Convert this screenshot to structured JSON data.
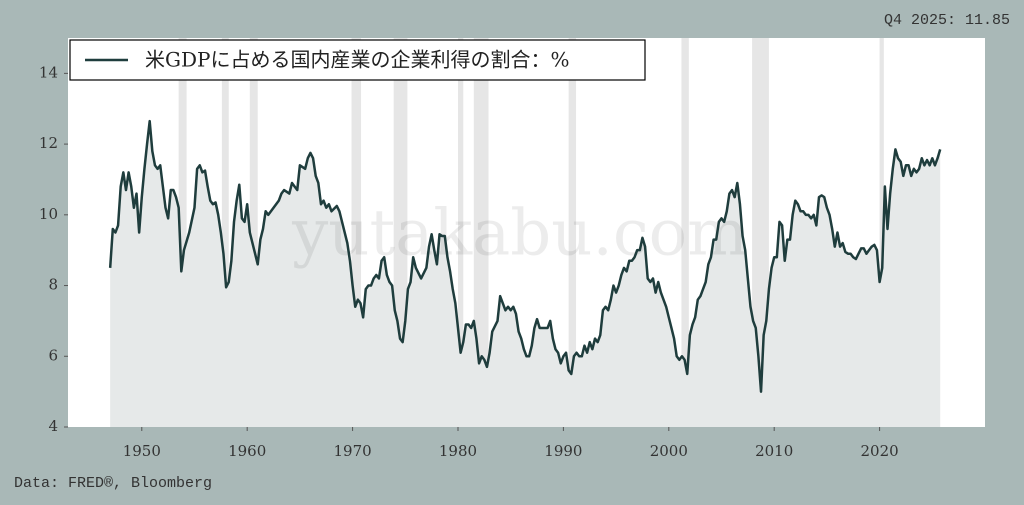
{
  "chart_data": {
    "type": "line",
    "annotation": "Q4 2025: 11.85",
    "source": "Data: FRED®, Bloomberg",
    "watermark": "yutakabu.com",
    "xlim": [
      1943,
      2030
    ],
    "ylim": [
      4,
      15
    ],
    "xticks": [
      1950,
      1960,
      1970,
      1980,
      1990,
      2000,
      2010,
      2020
    ],
    "yticks": [
      4,
      6,
      8,
      10,
      12,
      14
    ],
    "legend": "top-left",
    "recession_color": "#e6e6e6",
    "recessions": [
      [
        1953.5,
        1954.25
      ],
      [
        1957.6,
        1958.25
      ],
      [
        1960.25,
        1961.0
      ],
      [
        1969.9,
        1970.8
      ],
      [
        1973.9,
        1975.2
      ],
      [
        1980.0,
        1980.5
      ],
      [
        1981.5,
        1982.9
      ],
      [
        1990.5,
        1991.2
      ],
      [
        2001.2,
        2001.9
      ],
      [
        2007.9,
        2009.5
      ],
      [
        2020.0,
        2020.4
      ]
    ],
    "series": [
      {
        "name": "米GDPに占める国内産業の企業利得の割合：%",
        "color": "#1f3d3d",
        "fill": "#e6e9e9",
        "x": [
          1947.0,
          1947.25,
          1947.5,
          1947.75,
          1948.0,
          1948.25,
          1948.5,
          1948.75,
          1949.0,
          1949.25,
          1949.5,
          1949.75,
          1950.0,
          1950.25,
          1950.5,
          1950.75,
          1951.0,
          1951.25,
          1951.5,
          1951.75,
          1952.0,
          1952.25,
          1952.5,
          1952.75,
          1953.0,
          1953.25,
          1953.5,
          1953.75,
          1954.0,
          1954.5,
          1955.0,
          1955.25,
          1955.5,
          1955.75,
          1956.0,
          1956.25,
          1956.5,
          1956.75,
          1957.0,
          1957.25,
          1957.5,
          1957.75,
          1958.0,
          1958.25,
          1958.5,
          1958.75,
          1959.0,
          1959.25,
          1959.5,
          1959.75,
          1960.0,
          1960.25,
          1960.5,
          1960.75,
          1961.0,
          1961.25,
          1961.5,
          1961.75,
          1962.0,
          1962.5,
          1963.0,
          1963.25,
          1963.5,
          1964.0,
          1964.25,
          1964.75,
          1965.0,
          1965.5,
          1965.75,
          1966.0,
          1966.25,
          1966.5,
          1966.75,
          1967.0,
          1967.25,
          1967.5,
          1967.75,
          1968.0,
          1968.5,
          1968.75,
          1969.0,
          1969.5,
          1969.75,
          1970.0,
          1970.25,
          1970.5,
          1970.75,
          1971.0,
          1971.25,
          1971.5,
          1971.75,
          1972.0,
          1972.25,
          1972.5,
          1972.75,
          1973.0,
          1973.25,
          1973.5,
          1973.75,
          1974.0,
          1974.25,
          1974.5,
          1974.75,
          1975.0,
          1975.25,
          1975.5,
          1975.75,
          1976.0,
          1976.5,
          1977.0,
          1977.25,
          1977.5,
          1977.75,
          1978.0,
          1978.25,
          1978.5,
          1978.75,
          1979.0,
          1979.25,
          1979.5,
          1979.75,
          1980.0,
          1980.25,
          1980.5,
          1980.75,
          1981.0,
          1981.25,
          1981.5,
          1981.75,
          1982.0,
          1982.25,
          1982.5,
          1982.75,
          1983.0,
          1983.25,
          1983.75,
          1984.0,
          1984.25,
          1984.5,
          1984.75,
          1985.0,
          1985.25,
          1985.5,
          1985.75,
          1986.0,
          1986.25,
          1986.5,
          1986.75,
          1987.0,
          1987.25,
          1987.5,
          1987.75,
          1988.0,
          1988.5,
          1988.75,
          1989.0,
          1989.25,
          1989.5,
          1989.75,
          1990.0,
          1990.25,
          1990.5,
          1990.75,
          1991.0,
          1991.25,
          1991.5,
          1991.75,
          1992.0,
          1992.25,
          1992.5,
          1992.75,
          1993.0,
          1993.25,
          1993.5,
          1993.75,
          1994.0,
          1994.25,
          1994.5,
          1994.75,
          1995.0,
          1995.25,
          1995.5,
          1995.75,
          1996.0,
          1996.25,
          1996.5,
          1996.75,
          1997.0,
          1997.25,
          1997.5,
          1997.75,
          1998.0,
          1998.25,
          1998.5,
          1998.75,
          1999.0,
          1999.25,
          1999.5,
          1999.75,
          2000.0,
          2000.25,
          2000.5,
          2000.75,
          2001.0,
          2001.25,
          2001.5,
          2001.75,
          2002.0,
          2002.25,
          2002.5,
          2002.75,
          2003.0,
          2003.25,
          2003.5,
          2003.75,
          2004.0,
          2004.25,
          2004.5,
          2004.75,
          2005.0,
          2005.25,
          2005.5,
          2005.75,
          2006.0,
          2006.25,
          2006.5,
          2006.75,
          2007.0,
          2007.25,
          2007.5,
          2007.75,
          2008.0,
          2008.25,
          2008.5,
          2008.75,
          2009.0,
          2009.25,
          2009.5,
          2009.75,
          2010.0,
          2010.25,
          2010.5,
          2010.75,
          2011.0,
          2011.25,
          2011.5,
          2011.75,
          2012.0,
          2012.25,
          2012.5,
          2012.75,
          2013.0,
          2013.25,
          2013.5,
          2013.75,
          2014.0,
          2014.25,
          2014.5,
          2014.75,
          2015.0,
          2015.25,
          2015.5,
          2015.75,
          2016.0,
          2016.25,
          2016.5,
          2016.75,
          2017.0,
          2017.25,
          2017.5,
          2017.75,
          2018.0,
          2018.25,
          2018.5,
          2018.75,
          2019.0,
          2019.25,
          2019.5,
          2019.75,
          2020.0,
          2020.25,
          2020.5,
          2020.75,
          2021.0,
          2021.25,
          2021.5,
          2021.75,
          2022.0,
          2022.25,
          2022.5,
          2022.75,
          2023.0,
          2023.25,
          2023.5,
          2023.75,
          2024.0,
          2024.25,
          2024.5,
          2024.75,
          2025.0,
          2025.25,
          2025.5,
          2025.75
        ],
        "values": [
          8.5,
          9.6,
          9.5,
          9.7,
          10.8,
          11.2,
          10.7,
          11.2,
          10.8,
          10.2,
          10.6,
          9.5,
          10.5,
          11.3,
          12.0,
          12.65,
          11.8,
          11.4,
          11.3,
          11.4,
          10.8,
          10.2,
          9.9,
          10.7,
          10.7,
          10.5,
          10.2,
          8.4,
          9.0,
          9.5,
          10.2,
          11.3,
          11.4,
          11.2,
          11.25,
          10.8,
          10.4,
          10.3,
          10.35,
          10.0,
          9.5,
          8.9,
          7.95,
          8.1,
          8.7,
          9.8,
          10.4,
          10.85,
          9.9,
          9.8,
          10.3,
          9.5,
          9.2,
          8.9,
          8.6,
          9.3,
          9.6,
          10.1,
          10.0,
          10.2,
          10.4,
          10.6,
          10.7,
          10.6,
          10.9,
          10.7,
          11.4,
          11.3,
          11.6,
          11.75,
          11.6,
          11.1,
          10.9,
          10.3,
          10.4,
          10.2,
          10.3,
          10.1,
          10.25,
          10.1,
          9.8,
          9.2,
          8.7,
          8.0,
          7.4,
          7.6,
          7.5,
          7.1,
          7.9,
          8.0,
          8.0,
          8.2,
          8.3,
          8.2,
          8.7,
          8.8,
          8.3,
          8.1,
          8.0,
          7.3,
          7.0,
          6.5,
          6.4,
          7.0,
          7.9,
          8.1,
          8.8,
          8.5,
          8.2,
          8.5,
          9.1,
          9.45,
          9.0,
          8.6,
          9.45,
          9.4,
          9.4,
          8.8,
          8.4,
          7.9,
          7.5,
          6.8,
          6.1,
          6.4,
          6.9,
          6.9,
          6.8,
          7.0,
          6.5,
          5.8,
          6.0,
          5.9,
          5.7,
          6.1,
          6.7,
          7.0,
          7.7,
          7.5,
          7.3,
          7.4,
          7.3,
          7.4,
          7.2,
          6.7,
          6.5,
          6.2,
          6.0,
          6.0,
          6.3,
          6.8,
          7.05,
          6.8,
          6.8,
          6.8,
          7.0,
          6.5,
          6.2,
          6.1,
          5.8,
          6.0,
          6.1,
          5.6,
          5.5,
          6.0,
          6.1,
          6.0,
          6.0,
          6.3,
          6.1,
          6.4,
          6.2,
          6.5,
          6.4,
          6.6,
          7.3,
          7.4,
          7.3,
          7.6,
          8.0,
          7.8,
          8.0,
          8.3,
          8.5,
          8.4,
          8.7,
          8.7,
          8.8,
          9.0,
          9.0,
          9.35,
          9.1,
          8.2,
          8.1,
          8.2,
          7.8,
          8.1,
          7.8,
          7.6,
          7.4,
          7.1,
          6.8,
          6.5,
          6.0,
          5.9,
          6.0,
          5.9,
          5.5,
          6.6,
          6.9,
          7.1,
          7.6,
          7.7,
          7.9,
          8.1,
          8.6,
          8.8,
          9.3,
          9.3,
          9.8,
          9.9,
          9.8,
          10.1,
          10.6,
          10.7,
          10.5,
          10.9,
          10.3,
          9.4,
          9.0,
          8.2,
          7.4,
          7.0,
          6.8,
          6.0,
          5.0,
          6.6,
          7.0,
          7.9,
          8.5,
          8.8,
          8.8,
          9.8,
          9.7,
          8.7,
          9.3,
          9.3,
          10.0,
          10.4,
          10.3,
          10.1,
          10.1,
          10.0,
          10.0,
          9.9,
          10.0,
          9.7,
          10.5,
          10.55,
          10.5,
          10.2,
          10.0,
          9.6,
          9.1,
          9.5,
          9.1,
          9.2,
          8.95,
          8.9,
          8.9,
          8.8,
          8.75,
          8.9,
          9.05,
          9.05,
          8.9,
          9.0,
          9.1,
          9.15,
          9.0,
          8.1,
          8.5,
          10.8,
          9.6,
          10.6,
          11.3,
          11.85,
          11.6,
          11.5,
          11.1,
          11.4,
          11.4,
          11.1,
          11.3,
          11.2,
          11.3,
          11.6,
          11.4,
          11.55,
          11.4,
          11.6,
          11.4,
          11.6,
          11.85
        ]
      }
    ]
  }
}
